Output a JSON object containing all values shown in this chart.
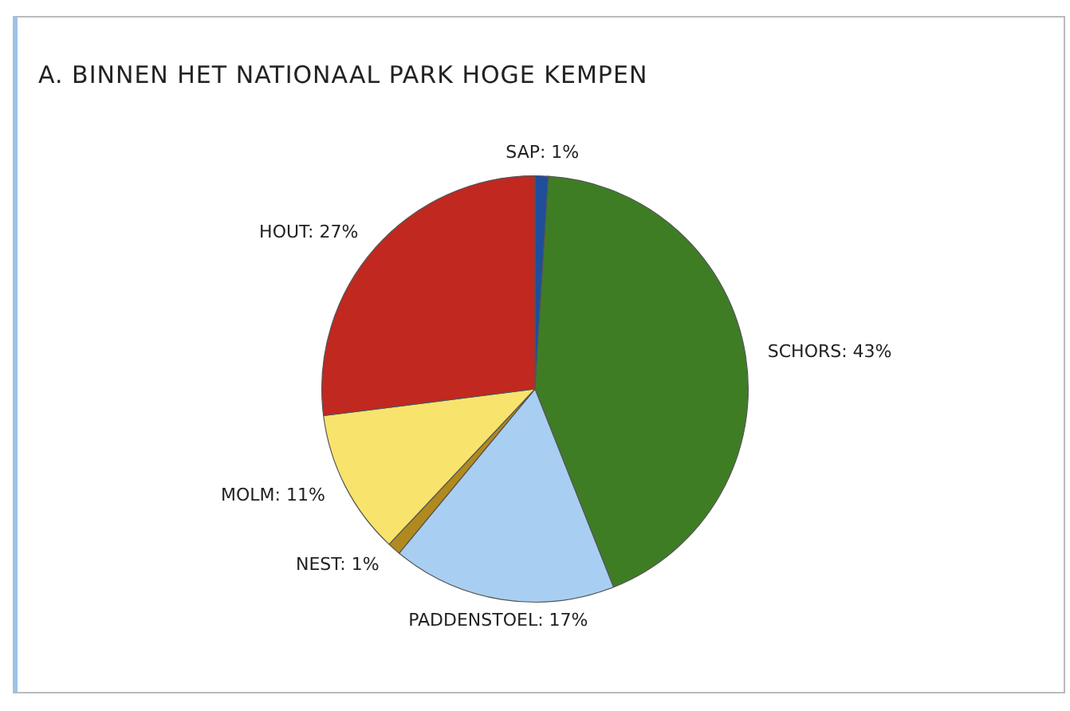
{
  "chart_data": {
    "type": "pie",
    "title": "A. BINNEN HET NATIONAAL PARK HOGE KEMPEN",
    "categories": [
      "SAP",
      "SCHORS",
      "PADDENSTOEL",
      "NEST",
      "MOLM",
      "HOUT"
    ],
    "values": [
      1,
      43,
      17,
      1,
      11,
      27
    ],
    "value_labels": [
      "1%",
      "43%",
      "17%",
      "1%",
      "11%",
      "27%"
    ],
    "colors": [
      "#1f4e9a",
      "#3f7d25",
      "#a8cff2",
      "#b08a1e",
      "#f8e36c",
      "#c1281f"
    ],
    "legend": false
  }
}
